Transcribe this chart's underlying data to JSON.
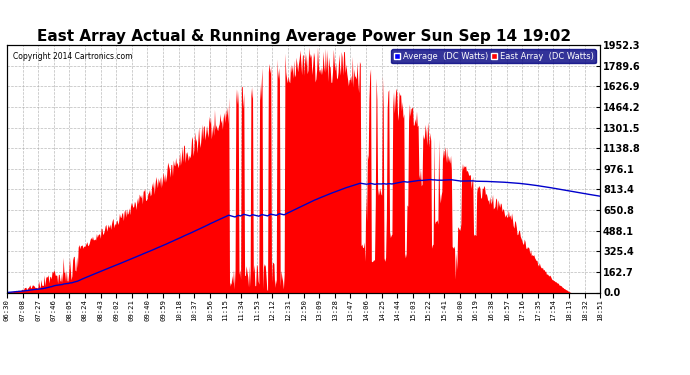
{
  "title": "East Array Actual & Running Average Power Sun Sep 14 19:02",
  "copyright": "Copyright 2014 Cartronics.com",
  "ylabel_right_ticks": [
    0.0,
    162.7,
    325.4,
    488.1,
    650.8,
    813.4,
    976.1,
    1138.8,
    1301.5,
    1464.2,
    1626.9,
    1789.6,
    1952.3
  ],
  "ymax": 1952.3,
  "ymin": 0.0,
  "bg_color": "#ffffff",
  "grid_color": "#aaaaaa",
  "area_color": "#ff0000",
  "avg_line_color": "#0000cc",
  "title_fontsize": 11,
  "legend_labels": [
    "Average  (DC Watts)",
    "East Array  (DC Watts)"
  ],
  "legend_colors": [
    "#0000ff",
    "#ff0000"
  ],
  "xtick_labels": [
    "06:30",
    "07:08",
    "07:27",
    "07:46",
    "08:05",
    "08:24",
    "08:43",
    "09:02",
    "09:21",
    "09:40",
    "09:59",
    "10:18",
    "10:37",
    "10:56",
    "11:15",
    "11:34",
    "11:53",
    "12:12",
    "12:31",
    "12:50",
    "13:09",
    "13:28",
    "13:47",
    "14:06",
    "14:25",
    "14:44",
    "15:03",
    "15:22",
    "15:41",
    "16:00",
    "16:19",
    "16:38",
    "16:57",
    "17:16",
    "17:35",
    "17:54",
    "18:13",
    "18:32",
    "18:51"
  ],
  "n_xticks": 39
}
